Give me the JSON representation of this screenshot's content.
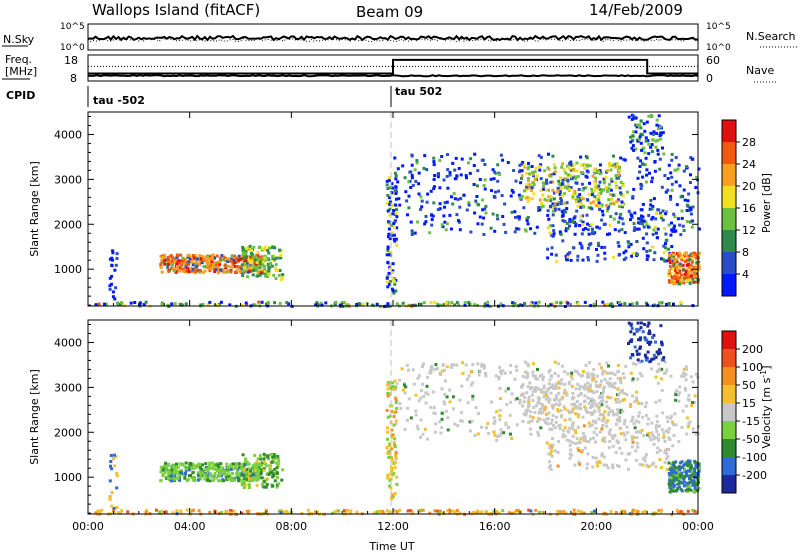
{
  "header": {
    "title": "Wallops Island (fitACF)",
    "beam": "Beam 09",
    "date": "14/Feb/2009"
  },
  "chart_data": [
    {
      "type": "line",
      "panel": "noise",
      "left_label": "N.Sky",
      "right_label": "N.Search",
      "left_ticks": [
        "10^5",
        "10^0"
      ],
      "right_ticks": [
        "10^5",
        "10^0"
      ],
      "series": [
        {
          "name": "N.Sky",
          "style": "solid"
        },
        {
          "name": "N.Search",
          "style": "dotted"
        }
      ]
    },
    {
      "type": "line",
      "panel": "frequency",
      "left_label_line1": "Freq.",
      "left_label_line2": "[MHz]",
      "right_label": "Nave",
      "left_ticks": [
        "18",
        "8"
      ],
      "right_ticks": [
        "60",
        "0"
      ],
      "series": [
        {
          "name": "Freq.",
          "style": "solid",
          "x": [
            0,
            12,
            12,
            22,
            22,
            24
          ],
          "y": [
            9.5,
            9.5,
            9.5,
            9.5,
            9.5,
            9.5
          ]
        },
        {
          "name": "Nave",
          "style": "solid",
          "x": [
            0,
            12,
            12,
            22,
            22,
            24
          ],
          "y": [
            15,
            15,
            52,
            52,
            15,
            15
          ]
        },
        {
          "name": "Nave-dotted",
          "style": "dotted",
          "y_const": 14.5
        }
      ]
    },
    {
      "type": "text",
      "panel": "cpid",
      "label": "CPID",
      "segments": [
        {
          "text": "tau -502",
          "start": 0
        },
        {
          "text": "tau 502",
          "start": 12
        }
      ]
    },
    {
      "type": "heatmap",
      "panel": "power",
      "ylabel": "Slant Range [km]",
      "yticks": [
        1000,
        2000,
        3000,
        4000
      ],
      "ylim": [
        180,
        4500
      ],
      "xlim": [
        0,
        24
      ],
      "colorbar": {
        "label": "Power [dB]",
        "ticks": [
          "4",
          "8",
          "12",
          "16",
          "20",
          "24",
          "28"
        ],
        "colors": [
          "#0018ff",
          "#2a4cc8",
          "#2e8a4a",
          "#6cc040",
          "#f2e020",
          "#f7a020",
          "#f05a10",
          "#e01010"
        ]
      }
    },
    {
      "type": "heatmap",
      "panel": "velocity",
      "ylabel": "Slant Range [km]",
      "yticks": [
        1000,
        2000,
        3000,
        4000
      ],
      "ylim": [
        180,
        4500
      ],
      "xlim": [
        0,
        24
      ],
      "xlabel": "Time UT",
      "xticks": [
        "00:00",
        "04:00",
        "08:00",
        "12:00",
        "16:00",
        "20:00",
        "00:00"
      ],
      "xtick_values": [
        0,
        4,
        8,
        12,
        16,
        20,
        24
      ],
      "colorbar": {
        "label_main": "Velocity [m s",
        "label_sup": "-1",
        "label_end": "]",
        "ticks": [
          "200",
          "100",
          "50",
          "15",
          "-15",
          "-50",
          "-100",
          "-200"
        ],
        "colors": [
          "#1a2a9a",
          "#2e6ad8",
          "#2e8a2e",
          "#7cd040",
          "#c8c8c8",
          "#f4c030",
          "#f49020",
          "#f05020",
          "#e01010"
        ]
      }
    }
  ]
}
